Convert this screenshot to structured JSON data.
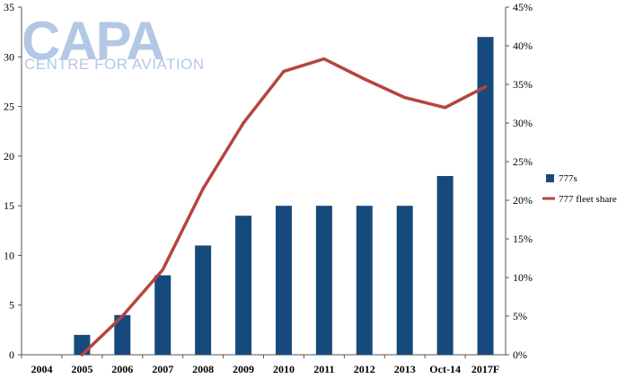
{
  "logo": {
    "main": "CAPA",
    "sub": "CENTRE FOR AVIATION"
  },
  "chart_data": {
    "type": "bar",
    "categories": [
      "2004",
      "2005",
      "2006",
      "2007",
      "2008",
      "2009",
      "2010",
      "2011",
      "2012",
      "2013",
      "Oct-14",
      "2017F"
    ],
    "series": [
      {
        "name": "777s",
        "type": "bar",
        "axis": "left",
        "color": "#174a7c",
        "values": [
          0,
          2,
          4,
          8,
          11,
          14,
          15,
          15,
          15,
          15,
          18,
          32
        ]
      },
      {
        "name": "777 fleet share",
        "type": "line",
        "axis": "right",
        "color": "#b5443f",
        "values": [
          null,
          0.0,
          0.05,
          0.11,
          0.215,
          0.3,
          0.367,
          0.383,
          0.357,
          0.333,
          0.32,
          0.347
        ]
      }
    ],
    "ylim_left": [
      0,
      35
    ],
    "yticks_left": [
      "0",
      "5",
      "10",
      "15",
      "20",
      "25",
      "30",
      "35"
    ],
    "ylim_right": [
      0,
      0.45
    ],
    "yticks_right": [
      "0%",
      "5%",
      "10%",
      "15%",
      "20%",
      "25%",
      "30%",
      "35%",
      "40%",
      "45%"
    ],
    "title": "",
    "xlabel": "",
    "ylabel": "",
    "grid": false,
    "legend_position": "right"
  }
}
